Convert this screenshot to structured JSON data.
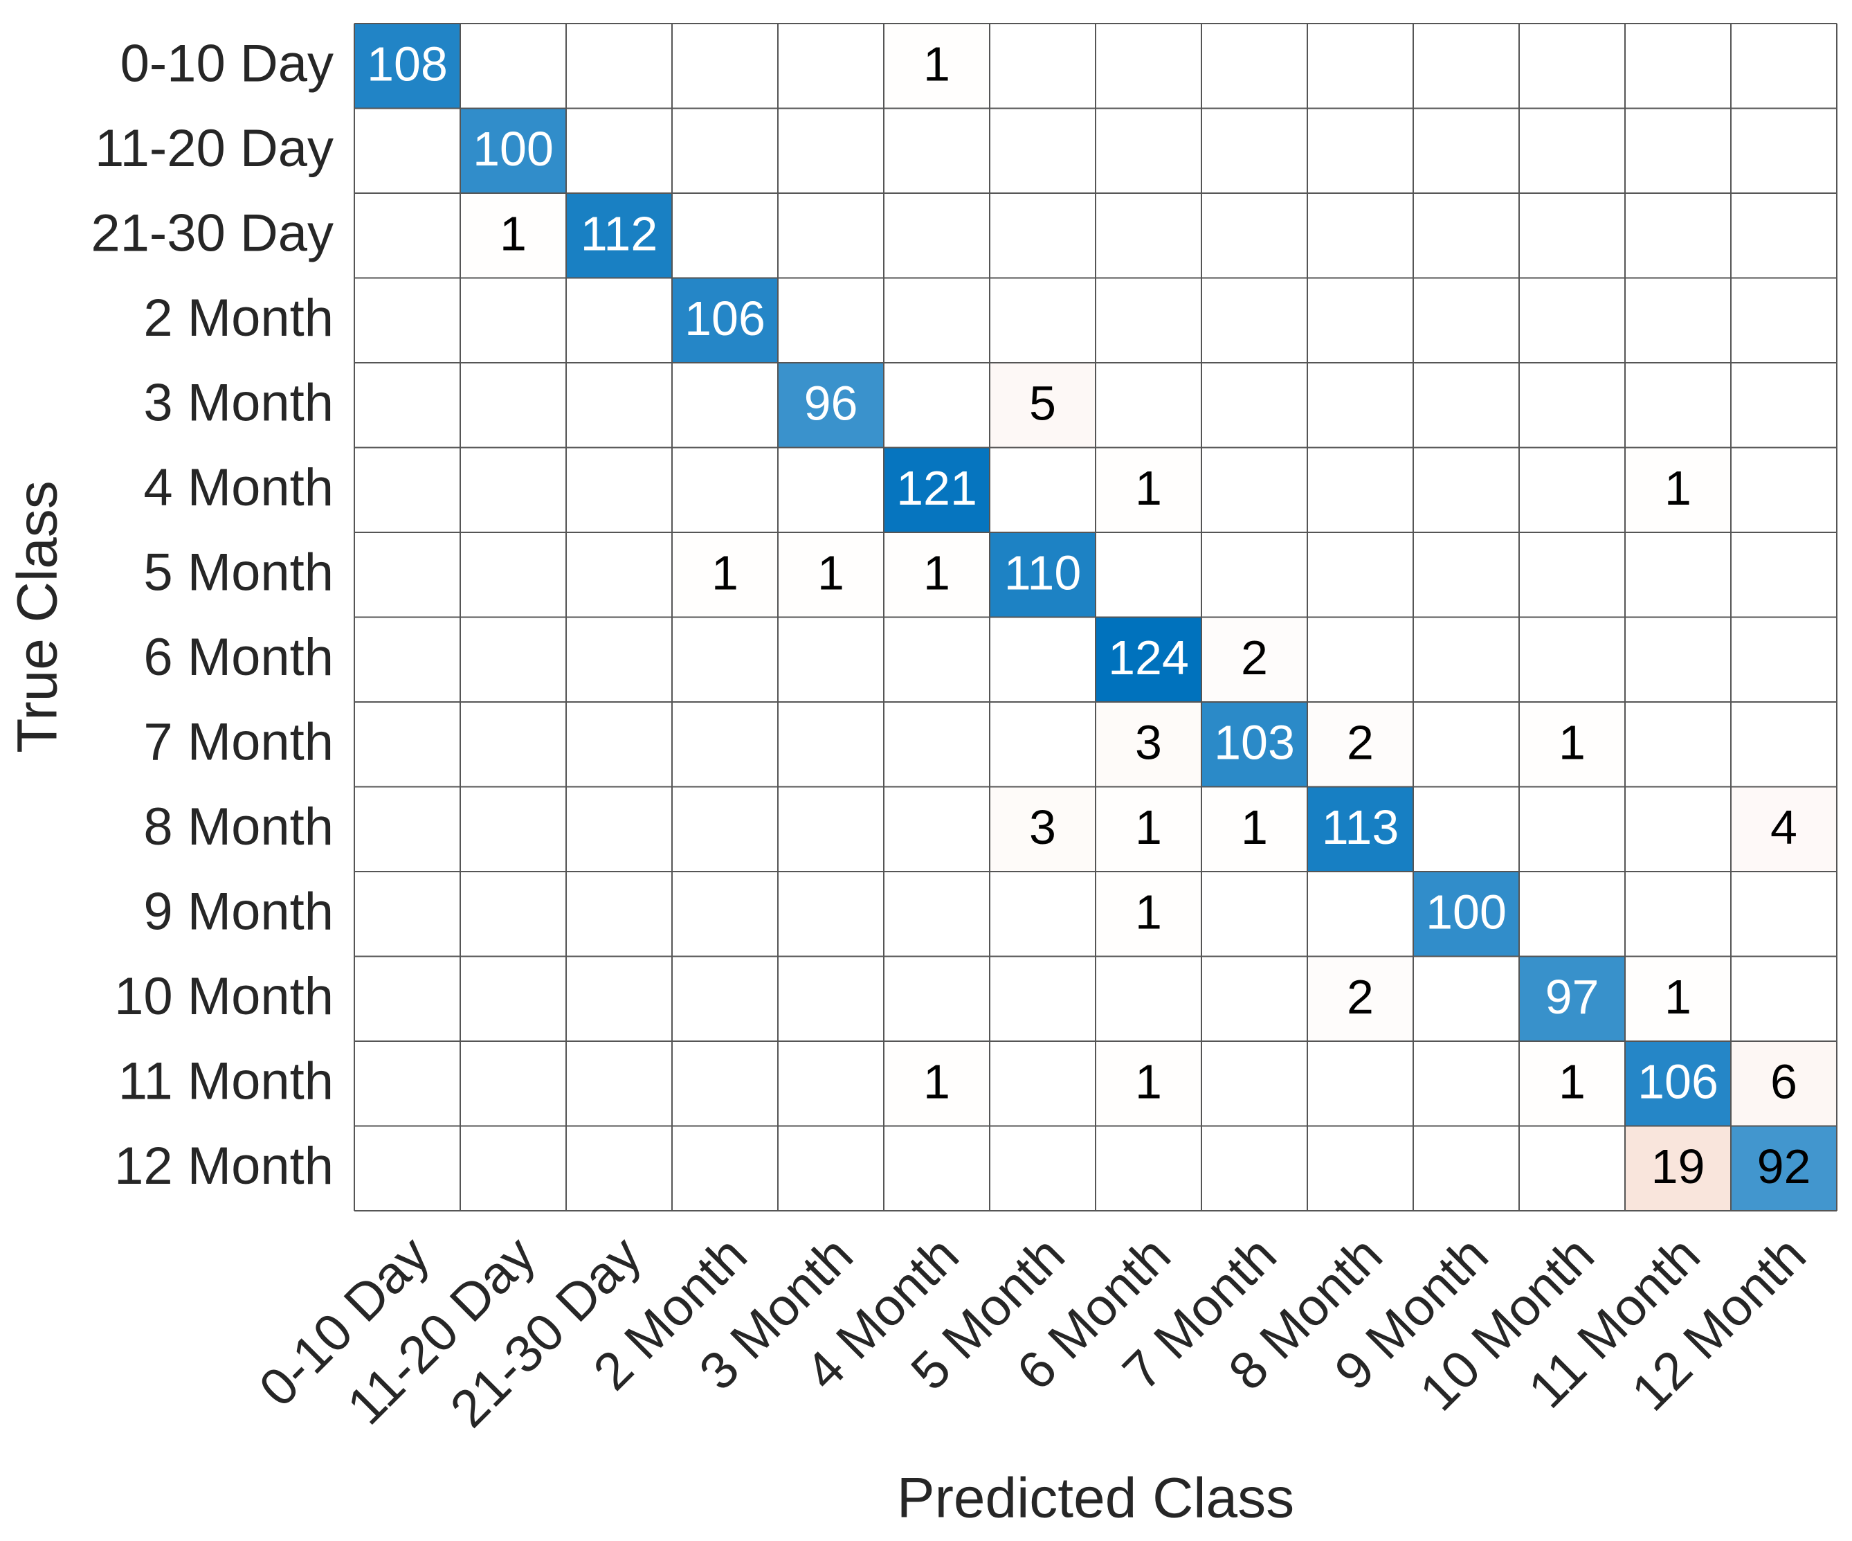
{
  "chart_data": {
    "type": "heatmap",
    "x_label": "Predicted Class",
    "y_label": "True Class",
    "categories": [
      "0-10 Day",
      "11-20 Day",
      "21-30 Day",
      "2 Month",
      "3 Month",
      "4 Month",
      "5 Month",
      "6 Month",
      "7 Month",
      "8 Month",
      "9 Month",
      "10 Month",
      "11 Month",
      "12 Month"
    ],
    "matrix": [
      [
        108,
        null,
        null,
        null,
        null,
        1,
        null,
        null,
        null,
        null,
        null,
        null,
        null,
        null
      ],
      [
        null,
        100,
        null,
        null,
        null,
        null,
        null,
        null,
        null,
        null,
        null,
        null,
        null,
        null
      ],
      [
        null,
        1,
        112,
        null,
        null,
        null,
        null,
        null,
        null,
        null,
        null,
        null,
        null,
        null
      ],
      [
        null,
        null,
        null,
        106,
        null,
        null,
        null,
        null,
        null,
        null,
        null,
        null,
        null,
        null
      ],
      [
        null,
        null,
        null,
        null,
        96,
        null,
        5,
        null,
        null,
        null,
        null,
        null,
        null,
        null
      ],
      [
        null,
        null,
        null,
        null,
        null,
        121,
        null,
        1,
        null,
        null,
        null,
        null,
        1,
        null
      ],
      [
        null,
        null,
        null,
        1,
        1,
        1,
        110,
        null,
        null,
        null,
        null,
        null,
        null,
        null
      ],
      [
        null,
        null,
        null,
        null,
        null,
        null,
        null,
        124,
        2,
        null,
        null,
        null,
        null,
        null
      ],
      [
        null,
        null,
        null,
        null,
        null,
        null,
        null,
        3,
        103,
        2,
        null,
        1,
        null,
        null
      ],
      [
        null,
        null,
        null,
        null,
        null,
        null,
        3,
        1,
        1,
        113,
        null,
        null,
        null,
        4
      ],
      [
        null,
        null,
        null,
        null,
        null,
        null,
        null,
        1,
        null,
        null,
        100,
        null,
        null,
        null
      ],
      [
        null,
        null,
        null,
        null,
        null,
        null,
        null,
        null,
        null,
        2,
        null,
        97,
        1,
        null
      ],
      [
        null,
        null,
        null,
        null,
        null,
        1,
        null,
        1,
        null,
        null,
        null,
        1,
        106,
        6
      ],
      [
        null,
        null,
        null,
        null,
        null,
        null,
        null,
        null,
        null,
        null,
        null,
        null,
        19,
        92
      ]
    ],
    "diagonal_color": "#0072bd",
    "off_diagonal_color": "#d95319"
  }
}
